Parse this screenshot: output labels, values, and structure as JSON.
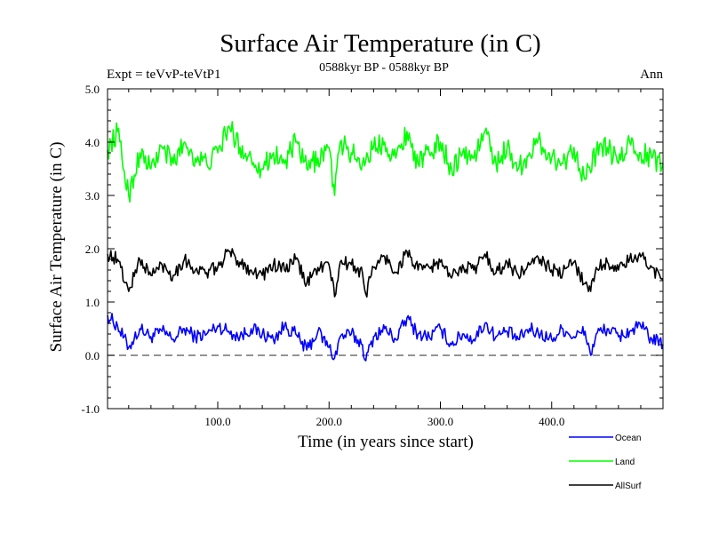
{
  "chart_data": {
    "type": "line",
    "title": "Surface Air Temperature (in C)",
    "subtitle": "0588kyr BP - 0588kyr BP",
    "expt_label": "Expt = teVvP-teVtP1",
    "period_label": "Ann",
    "xlabel": "Time (in years since start)",
    "ylabel": "Surface Air Temperature (in C)",
    "xlim": [
      1,
      500
    ],
    "ylim": [
      -1.0,
      5.0
    ],
    "x_ticks": [
      {
        "value": 100,
        "label": "100.0"
      },
      {
        "value": 200,
        "label": "200.0"
      },
      {
        "value": 300,
        "label": "300.0"
      },
      {
        "value": 400,
        "label": "400.0"
      }
    ],
    "y_ticks": [
      {
        "value": -1.0,
        "label": "-1.0"
      },
      {
        "value": 0.0,
        "label": "0.0"
      },
      {
        "value": 1.0,
        "label": "1.0"
      },
      {
        "value": 2.0,
        "label": "2.0"
      },
      {
        "value": 3.0,
        "label": "3.0"
      },
      {
        "value": 4.0,
        "label": "4.0"
      },
      {
        "value": 5.0,
        "label": "5.0"
      }
    ],
    "reference_line": {
      "y": 0.0,
      "style": "dashed"
    },
    "grid": false,
    "legend_position": "bottom-right",
    "series": [
      {
        "name": "Ocean",
        "color": "#0000ff",
        "x": [
          1,
          10,
          20,
          30,
          40,
          50,
          60,
          70,
          80,
          90,
          100,
          110,
          120,
          130,
          140,
          150,
          160,
          170,
          180,
          190,
          200,
          205,
          210,
          220,
          230,
          233,
          240,
          250,
          260,
          270,
          280,
          290,
          300,
          310,
          320,
          330,
          340,
          350,
          360,
          370,
          380,
          390,
          400,
          410,
          420,
          430,
          435,
          440,
          450,
          460,
          470,
          480,
          490,
          500
        ],
        "values": [
          0.75,
          0.55,
          0.15,
          0.5,
          0.35,
          0.45,
          0.3,
          0.5,
          0.35,
          0.4,
          0.55,
          0.45,
          0.35,
          0.5,
          0.4,
          0.3,
          0.55,
          0.4,
          0.1,
          0.45,
          0.15,
          -0.05,
          0.35,
          0.4,
          0.2,
          -0.1,
          0.35,
          0.5,
          0.3,
          0.7,
          0.4,
          0.35,
          0.5,
          0.2,
          0.4,
          0.3,
          0.6,
          0.35,
          0.45,
          0.3,
          0.5,
          0.4,
          0.3,
          0.5,
          0.35,
          0.45,
          0.0,
          0.4,
          0.5,
          0.35,
          0.45,
          0.55,
          0.3,
          0.2
        ]
      },
      {
        "name": "Land",
        "color": "#00ff00",
        "x": [
          1,
          10,
          20,
          30,
          40,
          50,
          60,
          70,
          80,
          90,
          100,
          110,
          120,
          130,
          140,
          150,
          160,
          170,
          180,
          190,
          200,
          205,
          210,
          220,
          230,
          240,
          250,
          260,
          270,
          280,
          290,
          300,
          310,
          320,
          330,
          340,
          350,
          360,
          370,
          380,
          390,
          400,
          410,
          420,
          430,
          440,
          450,
          460,
          470,
          480,
          490,
          500
        ],
        "values": [
          3.85,
          4.2,
          3.0,
          3.8,
          3.5,
          3.9,
          3.6,
          4.0,
          3.7,
          3.6,
          3.8,
          4.3,
          3.9,
          3.7,
          3.5,
          3.8,
          3.6,
          4.0,
          3.5,
          3.7,
          3.9,
          3.0,
          4.0,
          3.8,
          3.6,
          3.9,
          4.0,
          3.7,
          4.2,
          3.6,
          3.8,
          4.0,
          3.5,
          3.8,
          3.7,
          4.2,
          3.6,
          3.9,
          3.5,
          3.8,
          4.0,
          3.7,
          3.6,
          3.9,
          3.3,
          3.8,
          3.9,
          3.6,
          4.0,
          3.8,
          3.7,
          3.6
        ]
      },
      {
        "name": "AllSurf",
        "color": "#000000",
        "x": [
          1,
          10,
          20,
          30,
          40,
          50,
          60,
          70,
          80,
          90,
          100,
          110,
          120,
          130,
          140,
          150,
          160,
          170,
          180,
          190,
          200,
          205,
          210,
          220,
          230,
          233,
          240,
          250,
          260,
          270,
          280,
          290,
          300,
          310,
          320,
          330,
          340,
          350,
          360,
          370,
          380,
          390,
          400,
          410,
          420,
          430,
          435,
          440,
          450,
          460,
          470,
          480,
          490,
          500
        ],
        "values": [
          1.9,
          1.8,
          1.2,
          1.8,
          1.5,
          1.7,
          1.5,
          1.8,
          1.6,
          1.55,
          1.65,
          1.95,
          1.75,
          1.6,
          1.5,
          1.7,
          1.6,
          1.8,
          1.35,
          1.65,
          1.7,
          1.1,
          1.75,
          1.7,
          1.55,
          1.15,
          1.65,
          1.85,
          1.55,
          1.95,
          1.6,
          1.65,
          1.75,
          1.45,
          1.7,
          1.6,
          1.9,
          1.55,
          1.75,
          1.5,
          1.7,
          1.8,
          1.6,
          1.55,
          1.75,
          1.35,
          1.2,
          1.65,
          1.75,
          1.6,
          1.8,
          1.85,
          1.65,
          1.4
        ]
      }
    ]
  }
}
